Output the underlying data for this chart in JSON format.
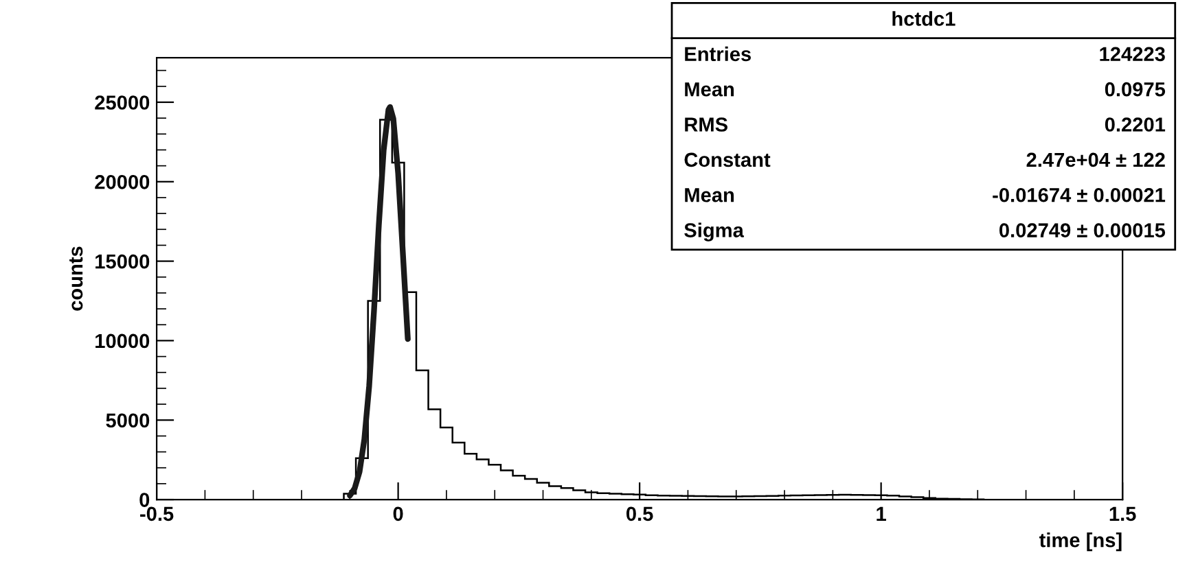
{
  "chart_data": {
    "type": "histogram",
    "xlabel": "time [ns]",
    "ylabel": "counts",
    "bins": [
      -0.1125,
      -0.0875,
      -0.0625,
      -0.0375,
      -0.0125,
      0.0125,
      0.0375,
      0.0625,
      0.0875,
      0.1125,
      0.1375,
      0.1625,
      0.1875,
      0.2125,
      0.2375,
      0.2625,
      0.2875,
      0.3125,
      0.3375,
      0.3625,
      0.3875,
      0.4125,
      0.4375,
      0.4625,
      0.4875,
      0.5125,
      0.5375,
      0.5625,
      0.5875,
      0.6125,
      0.6375,
      0.6625,
      0.6875,
      0.7125,
      0.7375,
      0.7625,
      0.7875,
      0.8125,
      0.8375,
      0.8625,
      0.8875,
      0.9125,
      0.9375,
      0.9625,
      0.9875,
      1.0125,
      1.0375,
      1.0625,
      1.0875,
      1.1125,
      1.1375,
      1.1625,
      1.1875,
      1.2125
    ],
    "values": [
      370,
      2600,
      12500,
      23900,
      21200,
      13050,
      8130,
      5680,
      4530,
      3580,
      2880,
      2530,
      2190,
      1840,
      1500,
      1300,
      1060,
      840,
      720,
      580,
      460,
      400,
      370,
      340,
      310,
      270,
      250,
      240,
      230,
      220,
      210,
      200,
      200,
      210,
      220,
      230,
      250,
      260,
      270,
      280,
      290,
      300,
      290,
      280,
      270,
      250,
      200,
      150,
      100,
      60,
      40,
      20,
      10
    ],
    "color": "#000000",
    "series": [
      {
        "type": "line",
        "color": "#1a1a1a",
        "x": [
          -0.1,
          -0.09,
          -0.08,
          -0.07,
          -0.06,
          -0.05,
          -0.04,
          -0.03,
          -0.02,
          -0.01674,
          -0.01,
          0.0,
          0.01,
          0.02
        ],
        "values": [
          252,
          709,
          1749,
          3780,
          7156,
          11880,
          17270,
          21990,
          24530,
          24700,
          23970,
          20520,
          15390,
          10100
        ]
      }
    ],
    "xlim": [
      -0.5,
      1.5
    ],
    "xticks": [
      -0.5,
      0,
      0.5,
      1,
      1.5
    ],
    "ylim": [
      0,
      27800
    ],
    "yticks": [
      0,
      5000,
      10000,
      15000,
      20000,
      25000
    ],
    "grid": false,
    "annotations": [
      "hctdc1",
      "Entries",
      "124223",
      "Mean",
      "0.0975",
      "RMS",
      "0.2201",
      "Constant",
      "2.47e+04 ± 122",
      "Mean",
      "-0.01674 ± 0.00021",
      "Sigma",
      "0.02749 ± 0.00015"
    ]
  }
}
